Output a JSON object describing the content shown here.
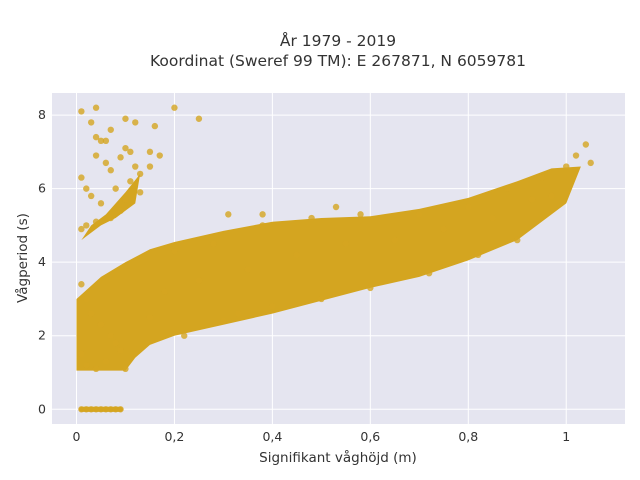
{
  "chart_data": {
    "type": "scatter",
    "title_line1": "År 1979 - 2019",
    "title_line2": "Koordinat (Sweref 99 TM): E 267871, N 6059781",
    "xlabel": "Signifikant våghöjd (m)",
    "ylabel": "Vågperiod (s)",
    "xlim": [
      -0.05,
      1.12
    ],
    "ylim": [
      -0.4,
      8.6
    ],
    "x_ticks": [
      0,
      0.2,
      0.4,
      0.6,
      0.8,
      1
    ],
    "x_tick_labels": [
      "0",
      "0,2",
      "0,4",
      "0,6",
      "0,8",
      "1"
    ],
    "y_ticks": [
      0,
      2,
      4,
      6,
      8
    ],
    "y_tick_labels": [
      "0",
      "2",
      "4",
      "6",
      "8"
    ],
    "grid": true,
    "colors": {
      "marker": "#D4A520",
      "plot_background": "#E5E5F0",
      "grid": "#ffffff"
    },
    "series": [
      {
        "points": [
          [
            0.01,
            8.1
          ],
          [
            0.04,
            8.2
          ],
          [
            0.2,
            8.2
          ],
          [
            0.25,
            7.9
          ],
          [
            0.12,
            7.8
          ],
          [
            0.16,
            7.7
          ],
          [
            0.03,
            7.8
          ],
          [
            0.07,
            7.6
          ],
          [
            0.1,
            7.9
          ],
          [
            0.04,
            7.4
          ],
          [
            0.05,
            7.3
          ],
          [
            0.06,
            7.3
          ],
          [
            0.1,
            7.1
          ],
          [
            0.11,
            7.0
          ],
          [
            0.15,
            7.0
          ],
          [
            0.17,
            6.9
          ],
          [
            0.09,
            6.85
          ],
          [
            0.12,
            6.6
          ],
          [
            0.04,
            6.9
          ],
          [
            0.06,
            6.7
          ],
          [
            0.07,
            6.5
          ],
          [
            0.11,
            6.2
          ],
          [
            0.13,
            6.4
          ],
          [
            0.15,
            6.6
          ],
          [
            0.01,
            6.3
          ],
          [
            0.02,
            6.0
          ],
          [
            0.03,
            5.8
          ],
          [
            0.05,
            5.6
          ],
          [
            0.08,
            6.0
          ],
          [
            0.1,
            5.7
          ],
          [
            0.13,
            5.9
          ],
          [
            0.09,
            5.4
          ],
          [
            0.07,
            5.2
          ],
          [
            0.04,
            5.1
          ],
          [
            0.02,
            5.0
          ],
          [
            0.01,
            4.9
          ],
          [
            0.01,
            3.4
          ],
          [
            0.02,
            3.0
          ],
          [
            0.03,
            2.6
          ],
          [
            0.05,
            2.3
          ],
          [
            0.07,
            2.0
          ],
          [
            0.08,
            1.8
          ],
          [
            0.01,
            1.5
          ],
          [
            0.02,
            1.2
          ],
          [
            0.04,
            1.1
          ],
          [
            0.06,
            1.3
          ],
          [
            0.09,
            1.6
          ],
          [
            0.1,
            1.1
          ],
          [
            0.01,
            0.0
          ],
          [
            0.02,
            0.0
          ],
          [
            0.03,
            0.0
          ],
          [
            0.04,
            0.0
          ],
          [
            0.05,
            0.0
          ],
          [
            0.06,
            0.0
          ],
          [
            0.07,
            0.0
          ],
          [
            0.08,
            0.0
          ],
          [
            0.09,
            0.0
          ],
          [
            0.15,
            2.5
          ],
          [
            0.18,
            3.2
          ],
          [
            0.2,
            4.3
          ],
          [
            0.22,
            2.0
          ],
          [
            0.25,
            3.5
          ],
          [
            0.28,
            4.5
          ],
          [
            0.3,
            2.4
          ],
          [
            0.35,
            3.8
          ],
          [
            0.38,
            5.0
          ],
          [
            0.4,
            2.8
          ],
          [
            0.45,
            4.2
          ],
          [
            0.48,
            5.2
          ],
          [
            0.5,
            3.0
          ],
          [
            0.55,
            4.5
          ],
          [
            0.58,
            5.3
          ],
          [
            0.6,
            3.3
          ],
          [
            0.65,
            4.6
          ],
          [
            0.7,
            5.3
          ],
          [
            0.72,
            3.7
          ],
          [
            0.75,
            4.9
          ],
          [
            0.8,
            5.5
          ],
          [
            0.82,
            4.2
          ],
          [
            0.85,
            5.2
          ],
          [
            0.88,
            6.0
          ],
          [
            0.9,
            4.6
          ],
          [
            0.93,
            5.7
          ],
          [
            0.95,
            6.3
          ],
          [
            0.97,
            5.8
          ],
          [
            1.0,
            6.6
          ],
          [
            1.02,
            6.9
          ],
          [
            1.04,
            7.2
          ],
          [
            1.05,
            6.7
          ],
          [
            0.53,
            5.5
          ],
          [
            0.38,
            5.3
          ],
          [
            0.31,
            5.3
          ],
          [
            0.33,
            2.6
          ]
        ]
      }
    ]
  }
}
